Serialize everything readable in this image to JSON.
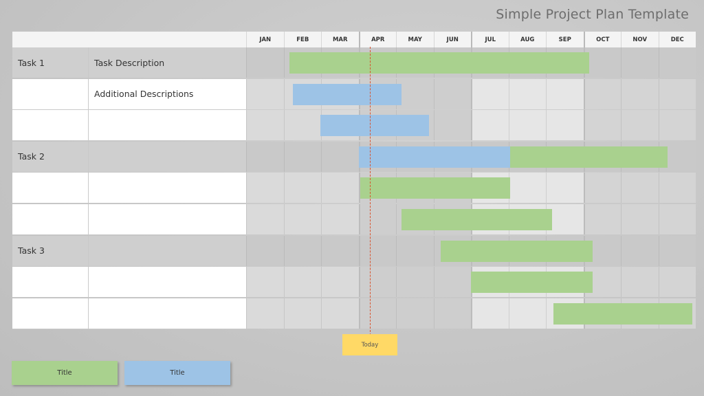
{
  "title": "Simple Project Plan Template",
  "months": [
    "JAN",
    "FEB",
    "MAR",
    "APR",
    "MAY",
    "JUN",
    "JUL",
    "AUG",
    "SEP",
    "OCT",
    "NOV",
    "DEC"
  ],
  "rows": [
    {
      "task": "Task 1",
      "description": "Task Description",
      "kind": "task"
    },
    {
      "task": "",
      "description": "Additional Descriptions",
      "kind": "sub"
    },
    {
      "task": "",
      "description": "",
      "kind": "sub"
    },
    {
      "task": "Task 2",
      "description": "",
      "kind": "task"
    },
    {
      "task": "",
      "description": "",
      "kind": "sub"
    },
    {
      "task": "",
      "description": "",
      "kind": "sub"
    },
    {
      "task": "Task 3",
      "description": "",
      "kind": "task"
    },
    {
      "task": "",
      "description": "",
      "kind": "sub"
    },
    {
      "task": "",
      "description": "",
      "kind": "sub"
    }
  ],
  "today_label": "Today",
  "legend": [
    {
      "label": "Title",
      "color": "#a9d18e"
    },
    {
      "label": "Title",
      "color": "#9dc3e6"
    }
  ],
  "colors": {
    "green": "#a9d18e",
    "blue": "#9dc3e6",
    "today": "#ffd966",
    "today_line": "#d9512c"
  },
  "chart_data": {
    "type": "gantt",
    "title": "Simple Project Plan Template",
    "x_axis": [
      "JAN",
      "FEB",
      "MAR",
      "APR",
      "MAY",
      "JUN",
      "JUL",
      "AUG",
      "SEP",
      "OCT",
      "NOV",
      "DEC"
    ],
    "today_month": 3.3,
    "bars": [
      {
        "row": 0,
        "start": 1.15,
        "end": 9.15,
        "color": "green"
      },
      {
        "row": 1,
        "start": 1.25,
        "end": 4.15,
        "color": "blue"
      },
      {
        "row": 2,
        "start": 1.98,
        "end": 4.88,
        "color": "blue"
      },
      {
        "row": 3,
        "start": 3.0,
        "end": 7.05,
        "color": "blue"
      },
      {
        "row": 3,
        "start": 7.05,
        "end": 11.25,
        "color": "green"
      },
      {
        "row": 4,
        "start": 3.05,
        "end": 7.05,
        "color": "green"
      },
      {
        "row": 5,
        "start": 4.15,
        "end": 8.17,
        "color": "green"
      },
      {
        "row": 6,
        "start": 5.2,
        "end": 9.25,
        "color": "green"
      },
      {
        "row": 7,
        "start": 6.0,
        "end": 9.25,
        "color": "green"
      },
      {
        "row": 8,
        "start": 8.2,
        "end": 11.9,
        "color": "green"
      }
    ]
  }
}
